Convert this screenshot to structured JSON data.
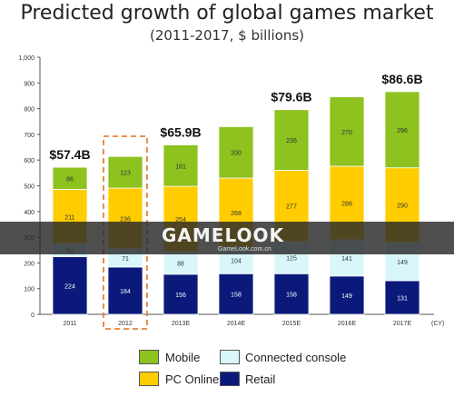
{
  "chart_data": {
    "type": "bar",
    "stacked": true,
    "title": "Predicted growth of global games market",
    "subtitle": "(2011-2017, $ billions)",
    "categories": [
      "2011",
      "2012",
      "2013E",
      "2014E",
      "2015E",
      "2016E",
      "2017E"
    ],
    "x_unit": "(CY)",
    "ylim": [
      0,
      1000
    ],
    "yticks": [
      "0",
      "100",
      "200",
      "300",
      "400",
      "500",
      "600",
      "700",
      "800",
      "900",
      "1,000"
    ],
    "series": [
      {
        "name": "Retail",
        "color": "#0b1a7a",
        "values": [
          224,
          184,
          156,
          158,
          158,
          149,
          131
        ],
        "labels": [
          "224",
          "184",
          "156",
          "158",
          "158",
          "149",
          "131"
        ]
      },
      {
        "name": "Connected console",
        "color": "#d9f7fb",
        "values": [
          51,
          71,
          88,
          104,
          125,
          141,
          149
        ],
        "labels": [
          "51",
          "71",
          "88",
          "104",
          "125",
          "141",
          "149"
        ]
      },
      {
        "name": "PC Online",
        "color": "#ffcc00",
        "values": [
          211,
          236,
          254,
          268,
          277,
          286,
          290
        ],
        "labels": [
          "211",
          "236",
          "254",
          "268",
          "277",
          "286",
          "290"
        ]
      },
      {
        "name": "Mobile",
        "color": "#8dc21f",
        "values": [
          86,
          123,
          161,
          200,
          236,
          270,
          296
        ],
        "labels": [
          "86",
          "123",
          "161",
          "200",
          "236",
          "270",
          "296"
        ]
      }
    ],
    "annotations": [
      {
        "category": "2011",
        "text": "$57.4B"
      },
      {
        "category": "2013E",
        "text": "$65.9B"
      },
      {
        "category": "2015E",
        "text": "$79.6B"
      },
      {
        "category": "2017E",
        "text": "$86.6B"
      }
    ],
    "highlighted_category": "2012",
    "highlight_color": "#e8833a",
    "legend_position": "bottom",
    "grid": false
  },
  "watermark": {
    "logo": "GAMELOOK",
    "url": "GameLook.com.cn"
  },
  "legend": {
    "mobile": "Mobile",
    "pc_online": "PC Online",
    "connected_console": "Connected console",
    "retail": "Retail"
  }
}
